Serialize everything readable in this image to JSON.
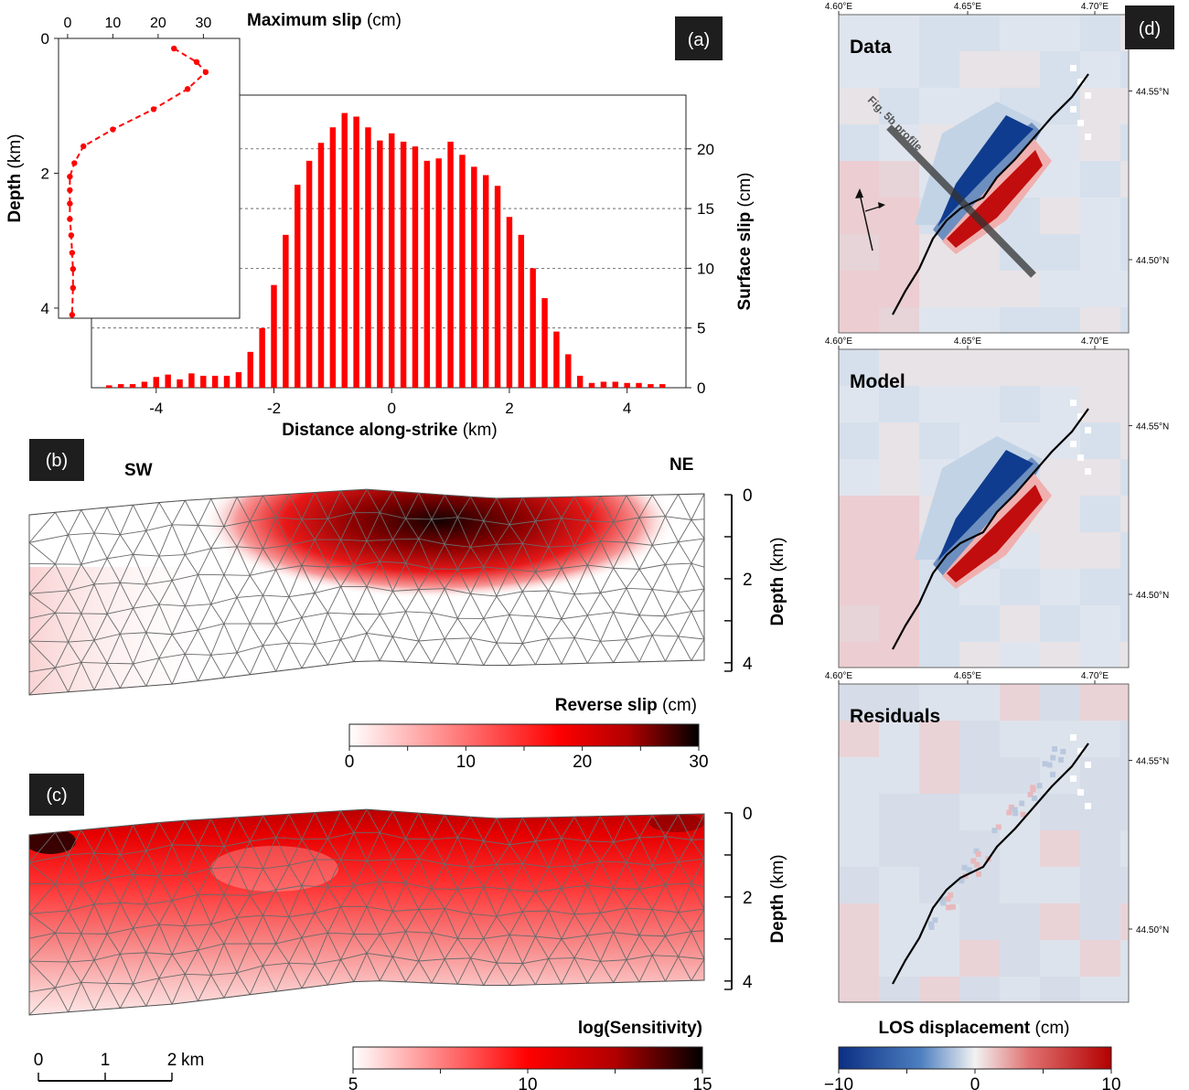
{
  "panel_labels": {
    "a": "(a)",
    "b": "(b)",
    "c": "(c)",
    "d": "(d)"
  },
  "chart_data": [
    {
      "id": "a",
      "type": "bar",
      "xlabel_bold": "Distance along-strike",
      "xlabel_unit": "(km)",
      "ylabel_bold": "Surface slip",
      "ylabel_unit": "(cm)",
      "xlim": [
        -5.1,
        5.0
      ],
      "ylim": [
        0,
        24.5
      ],
      "xticks": [
        "-4",
        "-2",
        "0",
        "2",
        "4"
      ],
      "yticks": [
        "0",
        "5",
        "10",
        "15",
        "20"
      ],
      "grid": "dashed horizontal at 5, 10, 15, 20",
      "color": "#ff0000",
      "x": [
        -4.8,
        -4.6,
        -4.4,
        -4.2,
        -4.0,
        -3.8,
        -3.6,
        -3.4,
        -3.2,
        -3.0,
        -2.8,
        -2.6,
        -2.4,
        -2.2,
        -2.0,
        -1.8,
        -1.6,
        -1.4,
        -1.2,
        -1.0,
        -0.8,
        -0.6,
        -0.4,
        -0.2,
        0.0,
        0.2,
        0.4,
        0.6,
        0.8,
        1.0,
        1.2,
        1.4,
        1.6,
        1.8,
        2.0,
        2.2,
        2.4,
        2.6,
        2.8,
        3.0,
        3.2,
        3.4,
        3.6,
        3.8,
        4.0,
        4.2,
        4.4,
        4.6
      ],
      "values": [
        0.2,
        0.3,
        0.3,
        0.5,
        0.9,
        1.1,
        0.7,
        1.2,
        1.0,
        1.0,
        1.0,
        1.3,
        3.0,
        5.0,
        8.6,
        12.8,
        17.0,
        19.0,
        20.5,
        21.8,
        23.0,
        22.7,
        21.8,
        20.7,
        21.3,
        20.6,
        20.2,
        19.0,
        19.2,
        20.6,
        19.5,
        18.5,
        17.8,
        16.9,
        14.3,
        12.8,
        10.0,
        7.5,
        4.7,
        2.8,
        1.0,
        0.4,
        0.5,
        0.5,
        0.4,
        0.4,
        0.3,
        0.3
      ]
    },
    {
      "id": "a-inset",
      "type": "line",
      "xlabel_bold": "Maximum slip",
      "xlabel_unit": "(cm)",
      "ylabel_bold": "Depth",
      "ylabel_unit": "(km)",
      "xlim": [
        -2,
        38
      ],
      "ylim": [
        0,
        4.15
      ],
      "xticks": [
        "0",
        "10",
        "20",
        "30"
      ],
      "yticks": [
        "0",
        "2",
        "4"
      ],
      "color": "#ff0000",
      "style": "dashed with dot markers",
      "x": [
        23.5,
        28.5,
        30.5,
        26.5,
        19.0,
        10.0,
        3.5,
        1.5,
        0.5,
        0.5,
        0.5,
        0.5,
        0.8,
        1.0,
        1.2,
        1.2,
        1.0
      ],
      "y": [
        0.15,
        0.35,
        0.5,
        0.75,
        1.05,
        1.35,
        1.6,
        1.85,
        2.05,
        2.25,
        2.45,
        2.68,
        2.92,
        3.18,
        3.42,
        3.7,
        4.1
      ]
    }
  ],
  "panel_b": {
    "sw_label": "SW",
    "ne_label": "NE",
    "depth_label_bold": "Depth",
    "depth_label_unit": "(km)",
    "depth_ticks": [
      "0",
      "2",
      "4"
    ],
    "colorbar": {
      "title_bold": "Reverse slip",
      "title_unit": "(cm)",
      "ticks": [
        "0",
        "10",
        "20",
        "30"
      ],
      "min": 0,
      "max": 30,
      "colors": [
        "#ffffff",
        "#ff0000",
        "#000000"
      ]
    }
  },
  "panel_c": {
    "depth_label_bold": "Depth",
    "depth_label_unit": "(km)",
    "depth_ticks": [
      "0",
      "2",
      "4"
    ],
    "colorbar": {
      "title_bold": "log(Sensitivity)",
      "ticks": [
        "5",
        "10",
        "15"
      ],
      "min": 5,
      "max": 15,
      "colors": [
        "#ffffff",
        "#ff0000",
        "#000000"
      ]
    },
    "scalebar": {
      "ticks": [
        "0",
        "1",
        "2"
      ],
      "unit": "km"
    }
  },
  "panel_d": {
    "maps": [
      {
        "title": "Data",
        "profile_label": "Fig. 5b profile"
      },
      {
        "title": "Model"
      },
      {
        "title": "Residuals"
      }
    ],
    "lon_ticks": [
      "4.60°E",
      "4.65°E",
      "4.70°E"
    ],
    "lat_ticks": [
      "44.55°N",
      "44.50°N"
    ],
    "colorbar": {
      "title_bold": "LOS displacement",
      "title_unit": "(cm)",
      "ticks": [
        "−10",
        "0",
        "10"
      ],
      "min": -10,
      "max": 10,
      "colors": [
        "#0b2f83",
        "#ffffff",
        "#b30000"
      ]
    }
  }
}
